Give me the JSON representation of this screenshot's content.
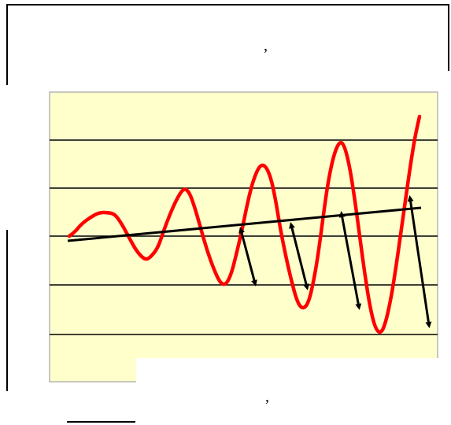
{
  "top_mark": ",",
  "bottom_mark": ",",
  "colors": {
    "background": "#ffffff",
    "plot_fill": "#ffffcc",
    "plot_border": "#b5b5b5",
    "oscillation": "#ff0000",
    "trend_line": "#000000",
    "arrows": "#000000",
    "frame": "#000000"
  },
  "diagram": {
    "description_elements": [
      "oscillating-curve",
      "trend-line",
      "amplitude-arrows",
      "horizontal-gridlines"
    ],
    "gridline_count": 5,
    "arrow_count": 4
  }
}
